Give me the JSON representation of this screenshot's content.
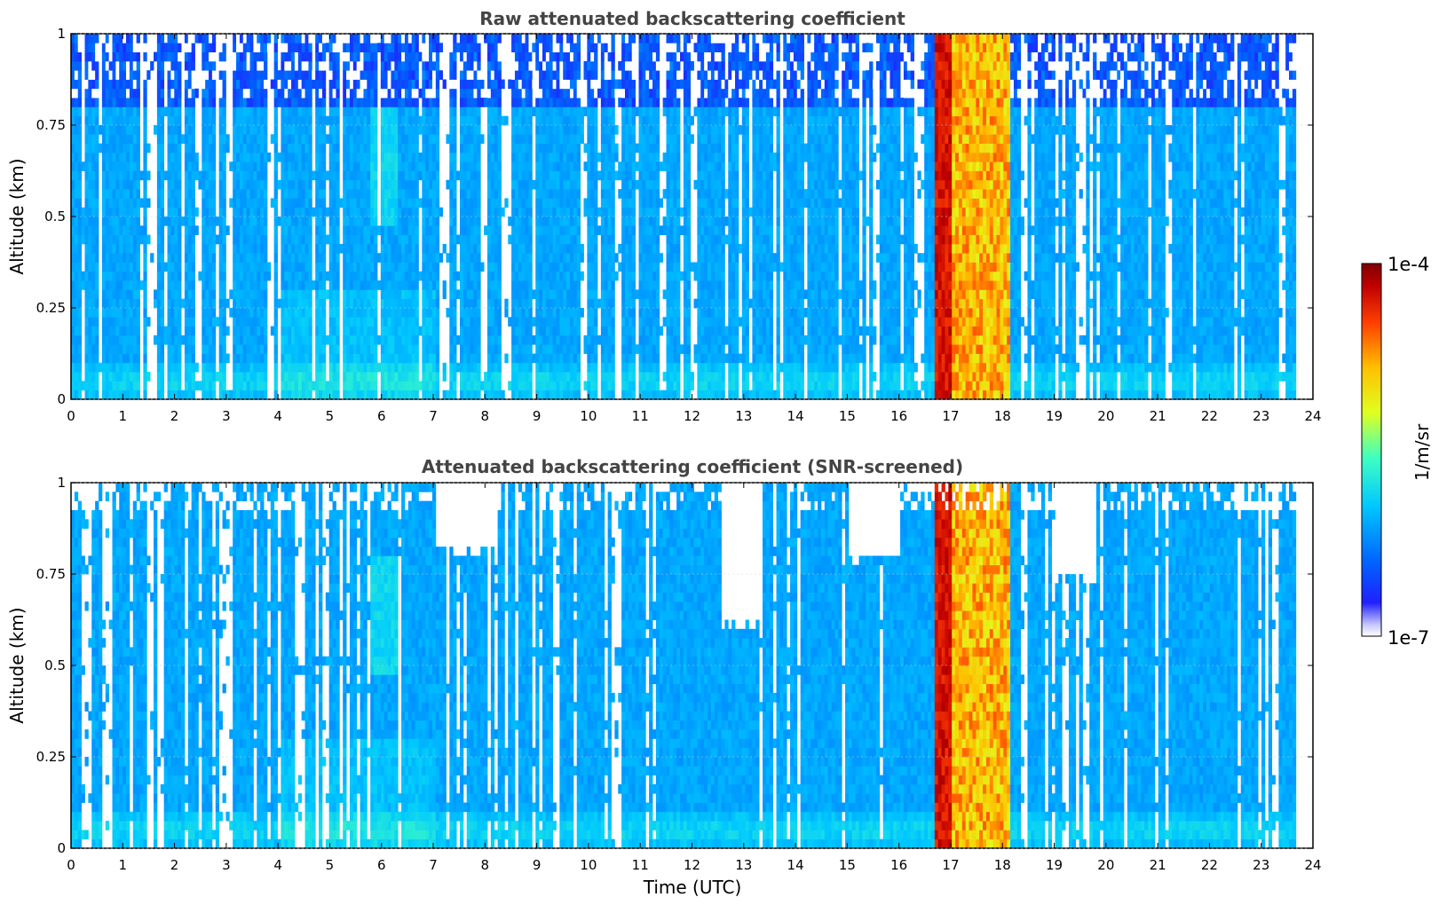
{
  "chart_data": [
    {
      "type": "heatmap",
      "title": "Raw attenuated backscattering coefficient",
      "xlabel": "",
      "ylabel": "Altitude (km)",
      "xlim": [
        0,
        24
      ],
      "ylim": [
        0,
        1
      ],
      "xticks": [
        "0",
        "1",
        "2",
        "3",
        "4",
        "5",
        "6",
        "7",
        "8",
        "9",
        "10",
        "11",
        "12",
        "13",
        "14",
        "15",
        "16",
        "17",
        "18",
        "19",
        "20",
        "21",
        "22",
        "23",
        "24"
      ],
      "yticks": [
        "0",
        "0.25",
        "0.5",
        "0.75",
        "1"
      ],
      "data_extent_hours": [
        0,
        23.67
      ],
      "missing_profile_times_h": [
        1.45,
        1.5,
        10.55
      ],
      "features": [
        {
          "kind": "cloud/rain column",
          "start_h": 16.65,
          "end_h": 18.1,
          "peak_h": 16.85,
          "level": "near 1e-4"
        },
        {
          "kind": "plume",
          "time_h": 6.0,
          "altitude_km": [
            0.45,
            0.8
          ],
          "level": "enhanced"
        },
        {
          "kind": "surface layer",
          "altitude_km": 0.04,
          "level": "enhanced"
        }
      ],
      "grid": true
    },
    {
      "type": "heatmap",
      "title": "Attenuated backscattering coefficient (SNR-screened)",
      "xlabel": "Time (UTC)",
      "ylabel": "Altitude (km)",
      "xlim": [
        0,
        24
      ],
      "ylim": [
        0,
        1
      ],
      "xticks": [
        "0",
        "1",
        "2",
        "3",
        "4",
        "5",
        "6",
        "7",
        "8",
        "9",
        "10",
        "11",
        "12",
        "13",
        "14",
        "15",
        "16",
        "17",
        "18",
        "19",
        "20",
        "21",
        "22",
        "23",
        "24"
      ],
      "yticks": [
        "0",
        "0.25",
        "0.5",
        "0.75",
        "1"
      ],
      "data_extent_hours": [
        0,
        23.67
      ],
      "missing_profile_times_h": [
        1.45,
        1.5,
        10.55
      ],
      "screened_regions": [
        {
          "start_h": 7.0,
          "end_h": 8.2,
          "min_altitude_km": 0.78
        },
        {
          "start_h": 12.5,
          "end_h": 13.3,
          "min_altitude_km": 0.57
        },
        {
          "start_h": 15.0,
          "end_h": 16.0,
          "min_altitude_km": 0.76
        },
        {
          "start_h": 19.0,
          "end_h": 19.8,
          "min_altitude_km": 0.71
        }
      ],
      "grid": true
    }
  ],
  "colorbar": {
    "label": "1/m/sr",
    "max_label": "1e-4",
    "min_label": "1e-7",
    "scale": "log",
    "range": [
      1e-07,
      0.0001
    ],
    "colormap": "jet"
  }
}
